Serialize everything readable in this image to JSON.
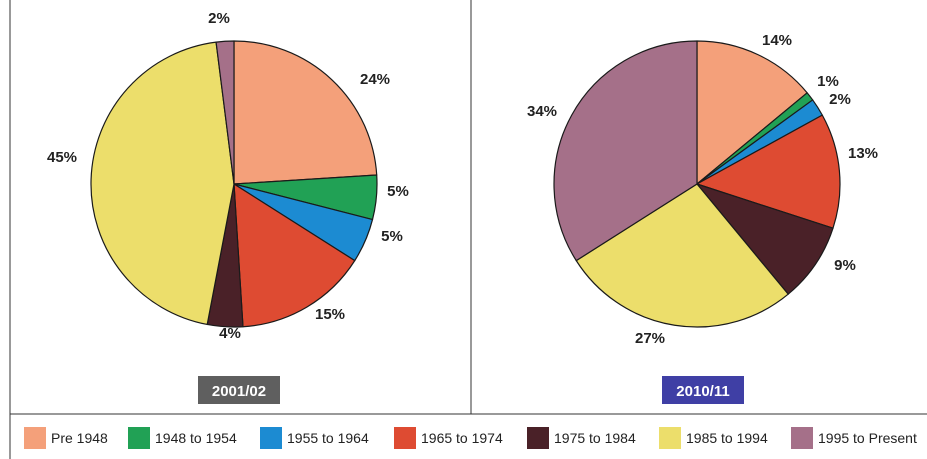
{
  "chart_data": {
    "type": "pie",
    "categories": [
      "Pre 1948",
      "1948 to 1954",
      "1955 to 1964",
      "1965 to 1974",
      "1975 to 1984",
      "1985 to 1994",
      "1995 to Present"
    ],
    "colors": [
      "#f4a07a",
      "#21a155",
      "#1c8bd2",
      "#de4b32",
      "#4a2128",
      "#ecde6b",
      "#a57089"
    ],
    "legend_position": "bottom",
    "charts": [
      {
        "title": "2001/02",
        "title_bg": "#5f5f5f",
        "values": [
          24,
          5,
          5,
          15,
          4,
          45,
          2
        ],
        "labels": [
          "24%",
          "5%",
          "5%",
          "15%",
          "4%",
          "45%",
          "2%"
        ]
      },
      {
        "title": "2010/11",
        "title_bg": "#3f3fa5",
        "values": [
          14,
          1,
          2,
          13,
          9,
          27,
          34
        ],
        "labels": [
          "14%",
          "1%",
          "2%",
          "13%",
          "9%",
          "27%",
          "34%"
        ]
      }
    ]
  }
}
